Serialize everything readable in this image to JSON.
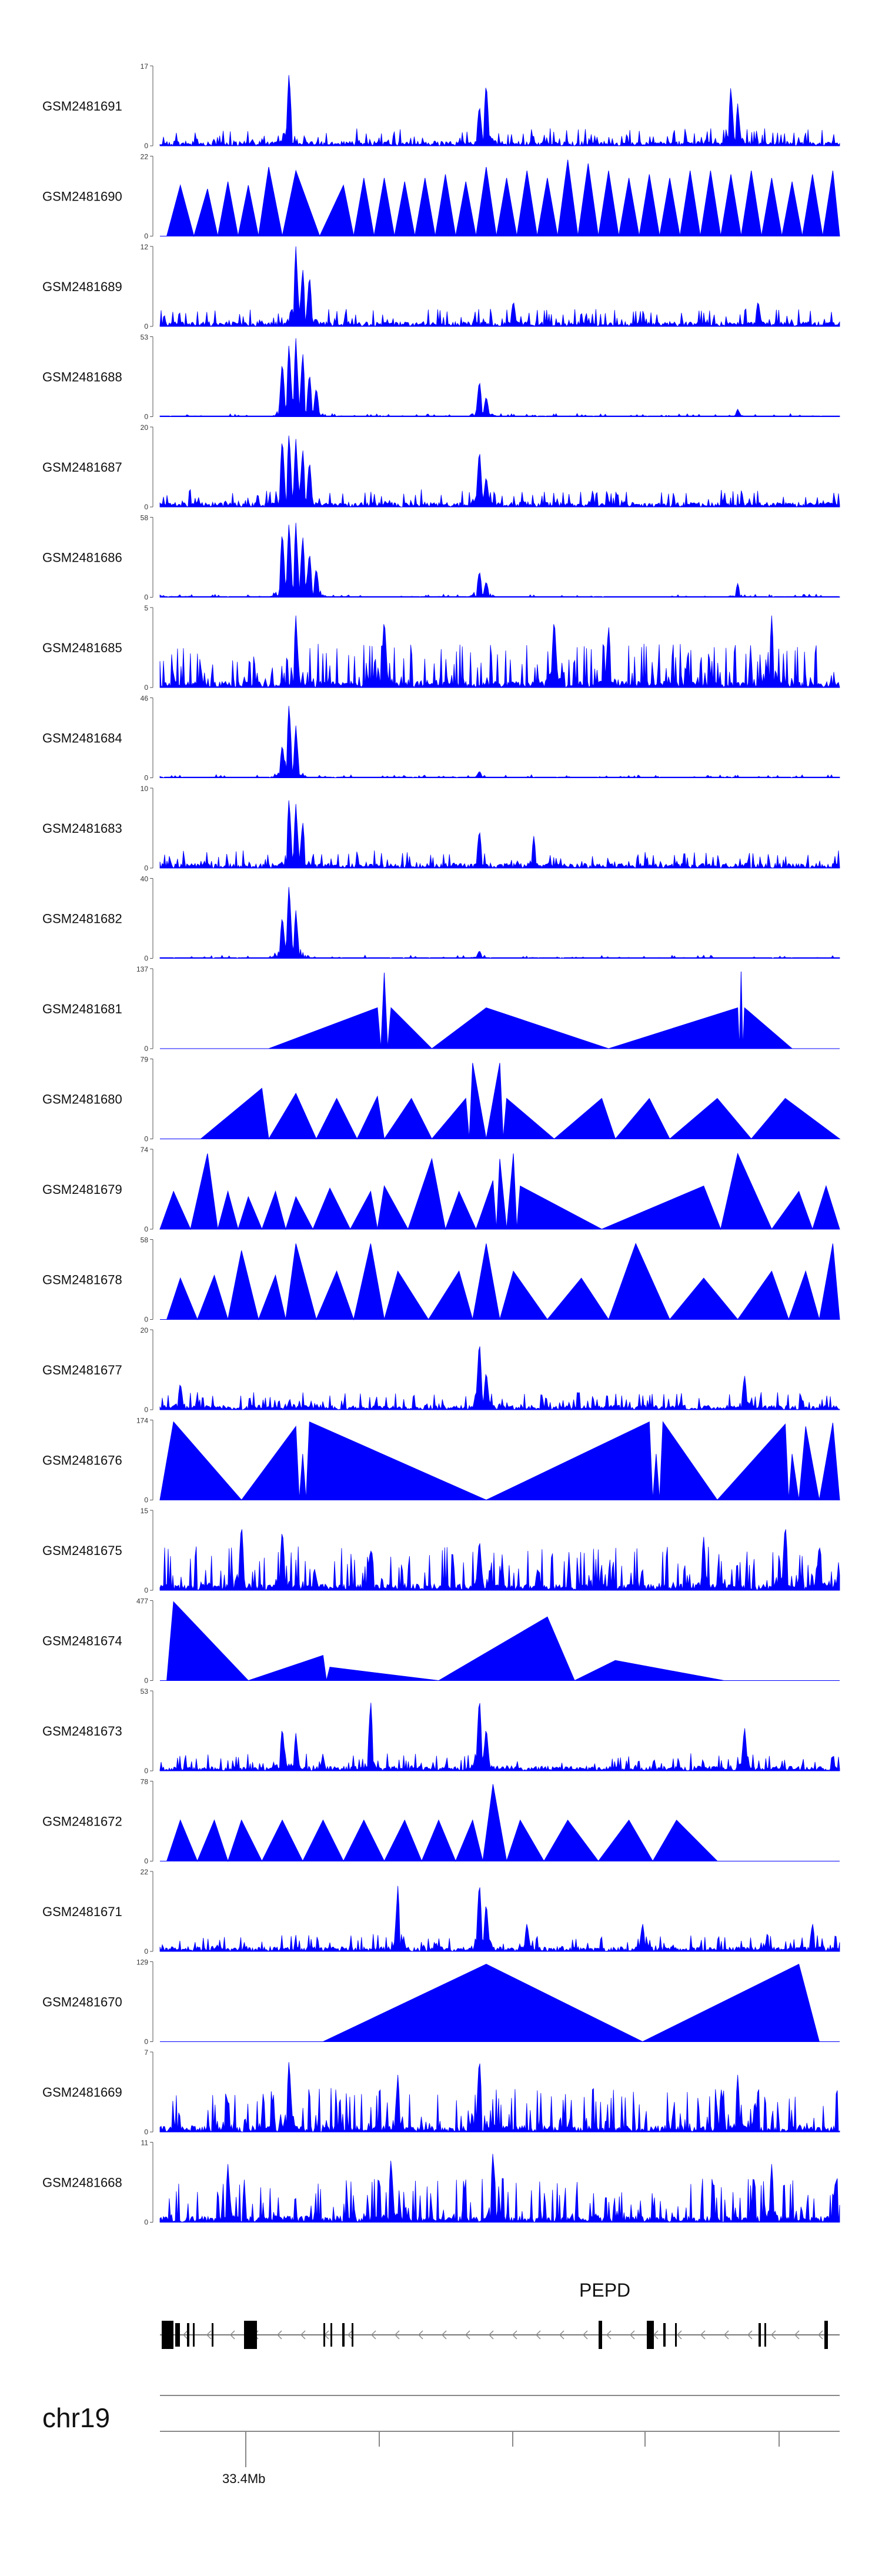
{
  "chart_data": {
    "type": "area",
    "title": "",
    "fill_color": "#0000ff",
    "chromosome": "chr19",
    "gene": "PEPD",
    "axis_tick_label": "33.4Mb",
    "tracks": [
      {
        "name": "GSM2481691",
        "ymax": 17,
        "ymin": 0,
        "pattern": "dense",
        "peaks": [
          [
            0.19,
            16
          ],
          [
            0.47,
            9
          ],
          [
            0.48,
            14
          ],
          [
            0.84,
            13
          ],
          [
            0.85,
            9
          ]
        ]
      },
      {
        "name": "GSM2481690",
        "ymax": 22,
        "ymin": 0,
        "pattern": "triangles",
        "peaks": [
          [
            0.03,
            14
          ],
          [
            0.07,
            13
          ],
          [
            0.1,
            15
          ],
          [
            0.13,
            14
          ],
          [
            0.16,
            19
          ],
          [
            0.2,
            18
          ],
          [
            0.27,
            14
          ],
          [
            0.3,
            16
          ],
          [
            0.33,
            16
          ],
          [
            0.36,
            15
          ],
          [
            0.39,
            16
          ],
          [
            0.42,
            17
          ],
          [
            0.45,
            15
          ],
          [
            0.48,
            19
          ],
          [
            0.51,
            16
          ],
          [
            0.54,
            18
          ],
          [
            0.57,
            16
          ],
          [
            0.6,
            21
          ],
          [
            0.63,
            20
          ],
          [
            0.66,
            18
          ],
          [
            0.69,
            16
          ],
          [
            0.72,
            17
          ],
          [
            0.75,
            16
          ],
          [
            0.78,
            18
          ],
          [
            0.81,
            18
          ],
          [
            0.84,
            17
          ],
          [
            0.87,
            18
          ],
          [
            0.9,
            16
          ],
          [
            0.93,
            15
          ],
          [
            0.96,
            17
          ],
          [
            0.99,
            18
          ]
        ]
      },
      {
        "name": "GSM2481689",
        "ymax": 12,
        "ymin": 0,
        "pattern": "dense",
        "peaks": [
          [
            0.2,
            12
          ],
          [
            0.21,
            9
          ],
          [
            0.22,
            8
          ],
          [
            0.52,
            4
          ],
          [
            0.88,
            4
          ]
        ]
      },
      {
        "name": "GSM2481688",
        "ymax": 53,
        "ymin": 0,
        "pattern": "sparse",
        "peaks": [
          [
            0.18,
            38
          ],
          [
            0.19,
            50
          ],
          [
            0.2,
            52
          ],
          [
            0.21,
            44
          ],
          [
            0.22,
            30
          ],
          [
            0.23,
            20
          ],
          [
            0.47,
            25
          ],
          [
            0.48,
            14
          ],
          [
            0.85,
            5
          ]
        ]
      },
      {
        "name": "GSM2481687",
        "ymax": 20,
        "ymin": 0,
        "pattern": "dense",
        "peaks": [
          [
            0.18,
            18
          ],
          [
            0.19,
            19
          ],
          [
            0.2,
            17
          ],
          [
            0.21,
            15
          ],
          [
            0.22,
            12
          ],
          [
            0.47,
            15
          ],
          [
            0.48,
            8
          ]
        ]
      },
      {
        "name": "GSM2481686",
        "ymax": 58,
        "ymin": 0,
        "pattern": "sparse",
        "peaks": [
          [
            0.18,
            50
          ],
          [
            0.19,
            56
          ],
          [
            0.2,
            54
          ],
          [
            0.21,
            46
          ],
          [
            0.22,
            34
          ],
          [
            0.23,
            22
          ],
          [
            0.47,
            20
          ],
          [
            0.48,
            12
          ],
          [
            0.85,
            10
          ]
        ]
      },
      {
        "name": "GSM2481685",
        "ymax": 5,
        "ymin": 0,
        "pattern": "spiky",
        "peaks": [
          [
            0.2,
            4.5
          ],
          [
            0.33,
            4.5
          ],
          [
            0.58,
            4.5
          ],
          [
            0.66,
            4
          ],
          [
            0.9,
            4.5
          ]
        ]
      },
      {
        "name": "GSM2481684",
        "ymax": 46,
        "ymin": 0,
        "pattern": "sparse",
        "peaks": [
          [
            0.18,
            20
          ],
          [
            0.19,
            44
          ],
          [
            0.2,
            30
          ],
          [
            0.47,
            4
          ]
        ]
      },
      {
        "name": "GSM2481683",
        "ymax": 10,
        "ymin": 0,
        "pattern": "dense",
        "peaks": [
          [
            0.19,
            9
          ],
          [
            0.2,
            8
          ],
          [
            0.21,
            6
          ],
          [
            0.47,
            5
          ],
          [
            0.55,
            4
          ]
        ]
      },
      {
        "name": "GSM2481682",
        "ymax": 40,
        "ymin": 0,
        "pattern": "sparse",
        "peaks": [
          [
            0.18,
            22
          ],
          [
            0.19,
            38
          ],
          [
            0.2,
            24
          ],
          [
            0.47,
            4
          ]
        ]
      },
      {
        "name": "GSM2481681",
        "ymax": 137,
        "ymin": 0,
        "pattern": "triangles",
        "peaks": [
          [
            0.16,
            0
          ],
          [
            0.32,
            70
          ],
          [
            0.33,
            130
          ],
          [
            0.34,
            70
          ],
          [
            0.4,
            0
          ],
          [
            0.48,
            70
          ],
          [
            0.66,
            0
          ],
          [
            0.85,
            70
          ],
          [
            0.855,
            132
          ],
          [
            0.86,
            70
          ],
          [
            0.93,
            0
          ]
        ]
      },
      {
        "name": "GSM2481680",
        "ymax": 79,
        "ymin": 0,
        "pattern": "triangles",
        "peaks": [
          [
            0.06,
            0
          ],
          [
            0.15,
            50
          ],
          [
            0.16,
            0
          ],
          [
            0.2,
            45
          ],
          [
            0.23,
            0
          ],
          [
            0.26,
            40
          ],
          [
            0.29,
            0
          ],
          [
            0.32,
            42
          ],
          [
            0.33,
            0
          ],
          [
            0.37,
            40
          ],
          [
            0.4,
            0
          ],
          [
            0.45,
            40
          ],
          [
            0.46,
            75
          ],
          [
            0.48,
            0
          ],
          [
            0.5,
            75
          ],
          [
            0.51,
            40
          ],
          [
            0.58,
            0
          ],
          [
            0.65,
            40
          ],
          [
            0.67,
            0
          ],
          [
            0.72,
            40
          ],
          [
            0.75,
            0
          ],
          [
            0.82,
            40
          ],
          [
            0.87,
            0
          ],
          [
            0.92,
            40
          ],
          [
            1.0,
            0
          ]
        ]
      },
      {
        "name": "GSM2481679",
        "ymax": 74,
        "ymin": 0,
        "pattern": "triangles",
        "peaks": [
          [
            0.02,
            35
          ],
          [
            0.07,
            70
          ],
          [
            0.1,
            35
          ],
          [
            0.13,
            30
          ],
          [
            0.17,
            35
          ],
          [
            0.2,
            30
          ],
          [
            0.25,
            38
          ],
          [
            0.31,
            35
          ],
          [
            0.33,
            40
          ],
          [
            0.4,
            65
          ],
          [
            0.44,
            35
          ],
          [
            0.49,
            45
          ],
          [
            0.5,
            65
          ],
          [
            0.52,
            70
          ],
          [
            0.53,
            40
          ],
          [
            0.65,
            0
          ],
          [
            0.8,
            40
          ],
          [
            0.85,
            70
          ],
          [
            0.9,
            0
          ],
          [
            0.94,
            35
          ],
          [
            0.98,
            40
          ]
        ]
      },
      {
        "name": "GSM2481678",
        "ymax": 58,
        "ymin": 0,
        "pattern": "triangles",
        "peaks": [
          [
            0.03,
            30
          ],
          [
            0.08,
            32
          ],
          [
            0.12,
            50
          ],
          [
            0.17,
            32
          ],
          [
            0.2,
            55
          ],
          [
            0.26,
            35
          ],
          [
            0.31,
            55
          ],
          [
            0.35,
            35
          ],
          [
            0.44,
            35
          ],
          [
            0.48,
            55
          ],
          [
            0.52,
            35
          ],
          [
            0.62,
            30
          ],
          [
            0.7,
            55
          ],
          [
            0.8,
            30
          ],
          [
            0.9,
            35
          ],
          [
            0.95,
            35
          ],
          [
            0.99,
            55
          ]
        ]
      },
      {
        "name": "GSM2481677",
        "ymax": 20,
        "ymin": 0,
        "pattern": "dense",
        "peaks": [
          [
            0.03,
            7
          ],
          [
            0.47,
            18
          ],
          [
            0.48,
            10
          ],
          [
            0.86,
            9
          ]
        ]
      },
      {
        "name": "GSM2481676",
        "ymax": 174,
        "ymin": 0,
        "pattern": "triangles",
        "peaks": [
          [
            0.02,
            170
          ],
          [
            0.12,
            0
          ],
          [
            0.2,
            160
          ],
          [
            0.21,
            100
          ],
          [
            0.22,
            170
          ],
          [
            0.48,
            0
          ],
          [
            0.72,
            170
          ],
          [
            0.73,
            100
          ],
          [
            0.74,
            170
          ],
          [
            0.82,
            0
          ],
          [
            0.92,
            165
          ],
          [
            0.93,
            100
          ],
          [
            0.95,
            160
          ],
          [
            0.97,
            0
          ],
          [
            0.99,
            168
          ]
        ]
      },
      {
        "name": "GSM2481675",
        "ymax": 15,
        "ymin": 0,
        "pattern": "spiky",
        "peaks": [
          [
            0.12,
            13
          ],
          [
            0.18,
            12
          ],
          [
            0.47,
            10
          ],
          [
            0.8,
            10
          ],
          [
            0.92,
            13
          ],
          [
            0.97,
            9
          ]
        ]
      },
      {
        "name": "GSM2481674",
        "ymax": 477,
        "ymin": 0,
        "pattern": "triangles",
        "peaks": [
          [
            0.01,
            0
          ],
          [
            0.02,
            470
          ],
          [
            0.13,
            0
          ],
          [
            0.24,
            150
          ],
          [
            0.25,
            80
          ],
          [
            0.41,
            0
          ],
          [
            0.57,
            380
          ],
          [
            0.61,
            0
          ],
          [
            0.67,
            120
          ],
          [
            0.83,
            0
          ]
        ]
      },
      {
        "name": "GSM2481673",
        "ymax": 53,
        "ymin": 0,
        "pattern": "dense",
        "peaks": [
          [
            0.18,
            30
          ],
          [
            0.2,
            25
          ],
          [
            0.31,
            48
          ],
          [
            0.47,
            51
          ],
          [
            0.48,
            30
          ],
          [
            0.86,
            30
          ]
        ]
      },
      {
        "name": "GSM2481672",
        "ymax": 78,
        "ymin": 0,
        "pattern": "triangles",
        "peaks": [
          [
            0.03,
            40
          ],
          [
            0.08,
            40
          ],
          [
            0.12,
            40
          ],
          [
            0.18,
            40
          ],
          [
            0.24,
            40
          ],
          [
            0.3,
            40
          ],
          [
            0.36,
            40
          ],
          [
            0.41,
            40
          ],
          [
            0.46,
            40
          ],
          [
            0.49,
            75
          ],
          [
            0.53,
            40
          ],
          [
            0.6,
            40
          ],
          [
            0.69,
            40
          ],
          [
            0.76,
            40
          ],
          [
            0.82,
            0
          ]
        ]
      },
      {
        "name": "GSM2481671",
        "ymax": 22,
        "ymin": 0,
        "pattern": "dense",
        "peaks": [
          [
            0.35,
            18
          ],
          [
            0.47,
            20
          ],
          [
            0.48,
            14
          ],
          [
            0.54,
            8
          ],
          [
            0.71,
            8
          ],
          [
            0.96,
            8
          ]
        ]
      },
      {
        "name": "GSM2481670",
        "ymax": 129,
        "ymin": 0,
        "pattern": "triangles",
        "peaks": [
          [
            0.24,
            0
          ],
          [
            0.48,
            125
          ],
          [
            0.71,
            0
          ],
          [
            0.94,
            125
          ],
          [
            0.97,
            0
          ]
        ]
      },
      {
        "name": "GSM2481669",
        "ymax": 7,
        "ymin": 0,
        "pattern": "spiky",
        "peaks": [
          [
            0.19,
            6.5
          ],
          [
            0.47,
            6.8
          ],
          [
            0.35,
            5
          ],
          [
            0.85,
            5
          ]
        ]
      },
      {
        "name": "GSM2481668",
        "ymax": 11,
        "ymin": 0,
        "pattern": "spiky",
        "peaks": [
          [
            0.1,
            8
          ],
          [
            0.34,
            9
          ],
          [
            0.49,
            10
          ],
          [
            0.9,
            8
          ]
        ]
      }
    ]
  }
}
